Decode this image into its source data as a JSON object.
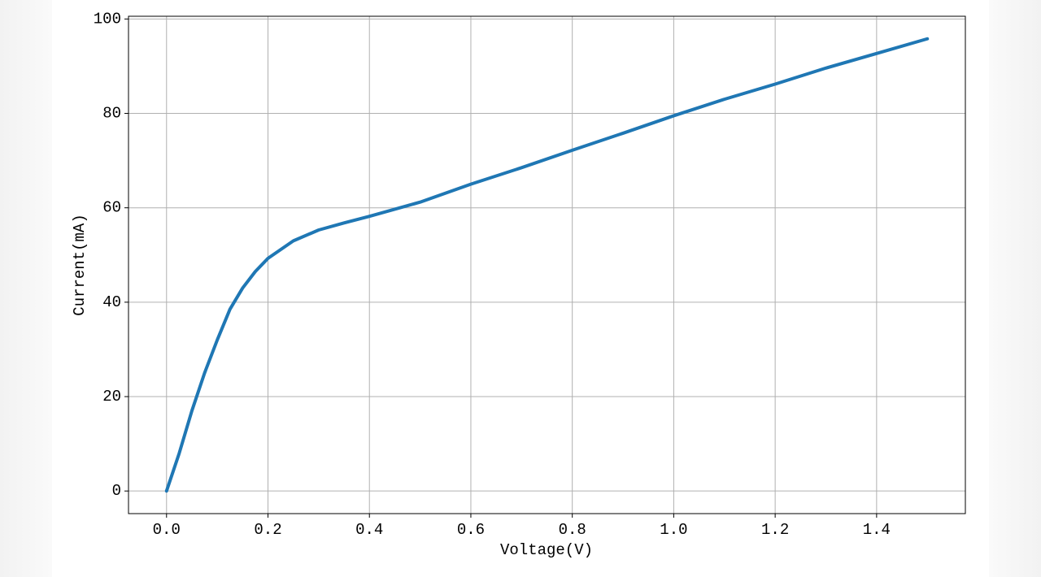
{
  "chart_data": {
    "type": "line",
    "x_label": "Voltage(V)",
    "y_label": "Current(mA)",
    "x": [
      0,
      0.025,
      0.05,
      0.075,
      0.1,
      0.125,
      0.15,
      0.175,
      0.2,
      0.25,
      0.3,
      0.35,
      0.4,
      0.5,
      0.6,
      0.7,
      0.8,
      0.9,
      1.0,
      1.1,
      1.2,
      1.3,
      1.4,
      1.5
    ],
    "values": [
      0,
      8,
      17,
      25,
      32,
      38.5,
      43,
      46.5,
      49.3,
      53,
      55.3,
      56.8,
      58.2,
      61.2,
      65,
      68.5,
      72.2,
      75.8,
      79.5,
      83,
      86.2,
      89.6,
      92.7,
      95.8
    ],
    "color": "#1f77b4",
    "xlim": [
      -0.075,
      1.575
    ],
    "xticks": [
      {
        "value": 0,
        "label": "0.0"
      },
      0.2,
      0.4,
      0.6,
      0.8,
      {
        "value": 1,
        "label": "1.0"
      },
      1.2,
      1.4
    ],
    "ylim": [
      -4.79,
      100.58
    ],
    "yticks": [
      0,
      20,
      40,
      60,
      80,
      100
    ],
    "grid": true
  }
}
